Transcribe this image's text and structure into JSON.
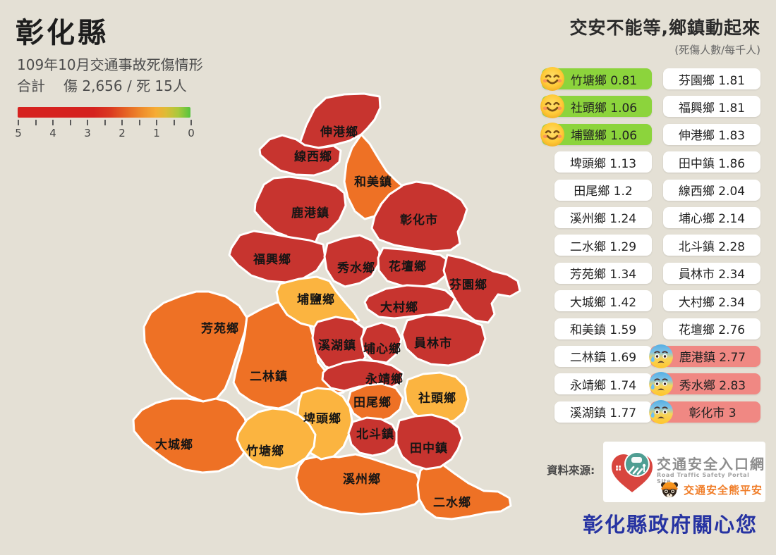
{
  "page": {
    "background": "#E4E0D5"
  },
  "header": {
    "title": "彰化縣",
    "subtitle": "109年10月交通事故死傷情形",
    "total_label": "合計",
    "total_value": "傷 2,656 / 死 15人"
  },
  "legend": {
    "tick_labels": [
      "5",
      "4",
      "3",
      "2",
      "1",
      "0"
    ],
    "gradient": [
      "#D6221F",
      "#E66424",
      "#F6AC35",
      "#55C43E"
    ]
  },
  "right_panel": {
    "headline": "交安不能等,鄉鎮動起來",
    "unit_note": "(死傷人數/每千人)",
    "columns": {
      "left": [
        {
          "name": "竹塘鄉",
          "value": 0.81,
          "style": "good"
        },
        {
          "name": "社頭鄉",
          "value": 1.06,
          "style": "good"
        },
        {
          "name": "埔鹽鄉",
          "value": 1.06,
          "style": "good"
        },
        {
          "name": "埤頭鄉",
          "value": 1.13,
          "style": "neutral"
        },
        {
          "name": "田尾鄉",
          "value": 1.2,
          "style": "neutral"
        },
        {
          "name": "溪州鄉",
          "value": 1.24,
          "style": "neutral"
        },
        {
          "name": "二水鄉",
          "value": 1.29,
          "style": "neutral"
        },
        {
          "name": "芳苑鄉",
          "value": 1.34,
          "style": "neutral"
        },
        {
          "name": "大城鄉",
          "value": 1.42,
          "style": "neutral"
        },
        {
          "name": "和美鎮",
          "value": 1.59,
          "style": "neutral"
        },
        {
          "name": "二林鎮",
          "value": 1.69,
          "style": "neutral"
        },
        {
          "name": "永靖鄉",
          "value": 1.74,
          "style": "neutral"
        },
        {
          "name": "溪湖鎮",
          "value": 1.77,
          "style": "neutral"
        }
      ],
      "right": [
        {
          "name": "芬園鄉",
          "value": 1.81,
          "style": "neutral"
        },
        {
          "name": "福興鄉",
          "value": 1.81,
          "style": "neutral"
        },
        {
          "name": "伸港鄉",
          "value": 1.83,
          "style": "neutral"
        },
        {
          "name": "田中鎮",
          "value": 1.86,
          "style": "neutral"
        },
        {
          "name": "線西鄉",
          "value": 2.04,
          "style": "neutral"
        },
        {
          "name": "埔心鄉",
          "value": 2.14,
          "style": "neutral"
        },
        {
          "name": "北斗鎮",
          "value": 2.28,
          "style": "neutral"
        },
        {
          "name": "員林市",
          "value": 2.34,
          "style": "neutral"
        },
        {
          "name": "大村鄉",
          "value": 2.34,
          "style": "neutral"
        },
        {
          "name": "花壇鄉",
          "value": 2.76,
          "style": "neutral"
        },
        {
          "name": "鹿港鎮",
          "value": 2.77,
          "style": "bad"
        },
        {
          "name": "秀水鄉",
          "value": 2.83,
          "style": "bad"
        },
        {
          "name": "彰化市",
          "value": 3,
          "style": "bad"
        }
      ]
    }
  },
  "map": {
    "regions": [
      {
        "id": "zhutang",
        "name": "竹塘鄉",
        "value": 0.81,
        "band": "low"
      },
      {
        "id": "shetou",
        "name": "社頭鄉",
        "value": 1.06,
        "band": "low"
      },
      {
        "id": "puyan",
        "name": "埔鹽鄉",
        "value": 1.06,
        "band": "low"
      },
      {
        "id": "pitou",
        "name": "埤頭鄉",
        "value": 1.13,
        "band": "low"
      },
      {
        "id": "tianwei",
        "name": "田尾鄉",
        "value": 1.2,
        "band": "mid"
      },
      {
        "id": "xizhou",
        "name": "溪州鄉",
        "value": 1.24,
        "band": "mid"
      },
      {
        "id": "ershui",
        "name": "二水鄉",
        "value": 1.29,
        "band": "mid"
      },
      {
        "id": "fangyuan",
        "name": "芳苑鄉",
        "value": 1.34,
        "band": "mid"
      },
      {
        "id": "dacheng",
        "name": "大城鄉",
        "value": 1.42,
        "band": "mid"
      },
      {
        "id": "hemei",
        "name": "和美鎮",
        "value": 1.59,
        "band": "mid"
      },
      {
        "id": "erlin",
        "name": "二林鎮",
        "value": 1.69,
        "band": "mid"
      },
      {
        "id": "yongjing",
        "name": "永靖鄉",
        "value": 1.74,
        "band": "high"
      },
      {
        "id": "xihu",
        "name": "溪湖鎮",
        "value": 1.77,
        "band": "high"
      },
      {
        "id": "fenyuan",
        "name": "芬園鄉",
        "value": 1.81,
        "band": "high"
      },
      {
        "id": "fuxing",
        "name": "福興鄉",
        "value": 1.81,
        "band": "high"
      },
      {
        "id": "shengang",
        "name": "伸港鄉",
        "value": 1.83,
        "band": "high"
      },
      {
        "id": "tianzhong",
        "name": "田中鎮",
        "value": 1.86,
        "band": "high"
      },
      {
        "id": "xianxi",
        "name": "線西鄉",
        "value": 2.04,
        "band": "high"
      },
      {
        "id": "puxin",
        "name": "埔心鄉",
        "value": 2.14,
        "band": "high"
      },
      {
        "id": "beidou",
        "name": "北斗鎮",
        "value": 2.28,
        "band": "high"
      },
      {
        "id": "yuanlin",
        "name": "員林市",
        "value": 2.34,
        "band": "high"
      },
      {
        "id": "dacun",
        "name": "大村鄉",
        "value": 2.34,
        "band": "high"
      },
      {
        "id": "huatan",
        "name": "花壇鄉",
        "value": 2.76,
        "band": "high"
      },
      {
        "id": "lugang",
        "name": "鹿港鎮",
        "value": 2.77,
        "band": "high"
      },
      {
        "id": "xiushui",
        "name": "秀水鄉",
        "value": 2.83,
        "band": "high"
      },
      {
        "id": "zhanghua",
        "name": "彰化市",
        "value": 3,
        "band": "high"
      }
    ]
  },
  "colors": {
    "band_low": "#FBB440",
    "band_mid": "#EE7125",
    "band_high": "#C7342F",
    "pill_good": "#8CD43C",
    "pill_bad": "#F08883",
    "pill_neutral": "#FFFFFF",
    "footer_blue": "#2633A2"
  },
  "source": {
    "label": "資料來源:",
    "portal_name": "交通安全入口網",
    "portal_sub": "Road Traffic Safety Portal Site",
    "bear_text": "交通安全熊平安"
  },
  "footer": {
    "text": "彰化縣政府關心您"
  },
  "chart_data": {
    "type": "choropleth",
    "title": "彰化縣 109年10月交通事故死傷情形",
    "subtitle": "交安不能等,鄉鎮動起來",
    "unit": "死傷人數/每千人",
    "totals": {
      "injured": 2656,
      "deaths": 15
    },
    "scale": {
      "domain": [
        5,
        0
      ],
      "gradient": [
        "#D6221F",
        "#E66424",
        "#F6AC35",
        "#55C43E"
      ],
      "tick_labels": [
        5,
        4,
        3,
        2,
        1,
        0
      ]
    },
    "regions": [
      {
        "name": "竹塘鄉",
        "value": 0.81
      },
      {
        "name": "社頭鄉",
        "value": 1.06
      },
      {
        "name": "埔鹽鄉",
        "value": 1.06
      },
      {
        "name": "埤頭鄉",
        "value": 1.13
      },
      {
        "name": "田尾鄉",
        "value": 1.2
      },
      {
        "name": "溪州鄉",
        "value": 1.24
      },
      {
        "name": "二水鄉",
        "value": 1.29
      },
      {
        "name": "芳苑鄉",
        "value": 1.34
      },
      {
        "name": "大城鄉",
        "value": 1.42
      },
      {
        "name": "和美鎮",
        "value": 1.59
      },
      {
        "name": "二林鎮",
        "value": 1.69
      },
      {
        "name": "永靖鄉",
        "value": 1.74
      },
      {
        "name": "溪湖鎮",
        "value": 1.77
      },
      {
        "name": "芬園鄉",
        "value": 1.81
      },
      {
        "name": "福興鄉",
        "value": 1.81
      },
      {
        "name": "伸港鄉",
        "value": 1.83
      },
      {
        "name": "田中鎮",
        "value": 1.86
      },
      {
        "name": "線西鄉",
        "value": 2.04
      },
      {
        "name": "埔心鄉",
        "value": 2.14
      },
      {
        "name": "北斗鎮",
        "value": 2.28
      },
      {
        "name": "員林市",
        "value": 2.34
      },
      {
        "name": "大村鄉",
        "value": 2.34
      },
      {
        "name": "花壇鄉",
        "value": 2.76
      },
      {
        "name": "鹿港鎮",
        "value": 2.77
      },
      {
        "name": "秀水鄉",
        "value": 2.83
      },
      {
        "name": "彰化市",
        "value": 3
      }
    ]
  }
}
